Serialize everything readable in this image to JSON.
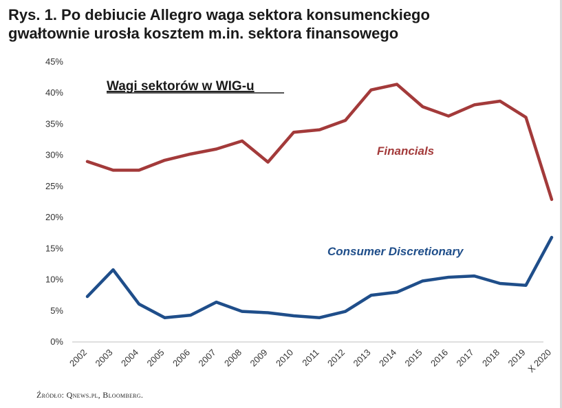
{
  "figure": {
    "title_line1": "Rys. 1. Po debiucie Allegro waga sektora konsumenckiego",
    "title_line2": "gwałtownie urosła kosztem m.in. sektora finansowego",
    "source": "Źródło: Qnews.pl, Bloomberg."
  },
  "chart_data": {
    "type": "line",
    "title": "Wagi sektorów w WIG-u",
    "categories": [
      "2002",
      "2003",
      "2004",
      "2005",
      "2006",
      "2007",
      "2008",
      "2009",
      "2010",
      "2011",
      "2012",
      "2013",
      "2014",
      "2015",
      "2016",
      "2017",
      "2018",
      "2019",
      "X 2020"
    ],
    "ylim": [
      0,
      45
    ],
    "yticks": [
      0,
      5,
      10,
      15,
      20,
      25,
      30,
      35,
      40,
      45
    ],
    "ytick_labels": [
      "0%",
      "5%",
      "10%",
      "15%",
      "20%",
      "25%",
      "30%",
      "35%",
      "40%",
      "45%"
    ],
    "y_unit": "%",
    "grid": false,
    "series": [
      {
        "name": "Financials",
        "color": "#A33A3A",
        "values": [
          29.0,
          27.6,
          27.6,
          29.2,
          30.2,
          31.0,
          32.3,
          28.9,
          33.7,
          34.1,
          35.6,
          40.5,
          41.4,
          37.8,
          36.3,
          38.1,
          38.7,
          36.1,
          22.9
        ]
      },
      {
        "name": "Consumer Discretionary",
        "color": "#1F4E8A",
        "values": [
          7.3,
          11.6,
          6.1,
          3.9,
          4.3,
          6.4,
          4.9,
          4.7,
          4.2,
          3.9,
          4.9,
          7.5,
          8.0,
          9.8,
          10.4,
          10.6,
          9.4,
          9.1,
          16.8
        ]
      }
    ]
  }
}
